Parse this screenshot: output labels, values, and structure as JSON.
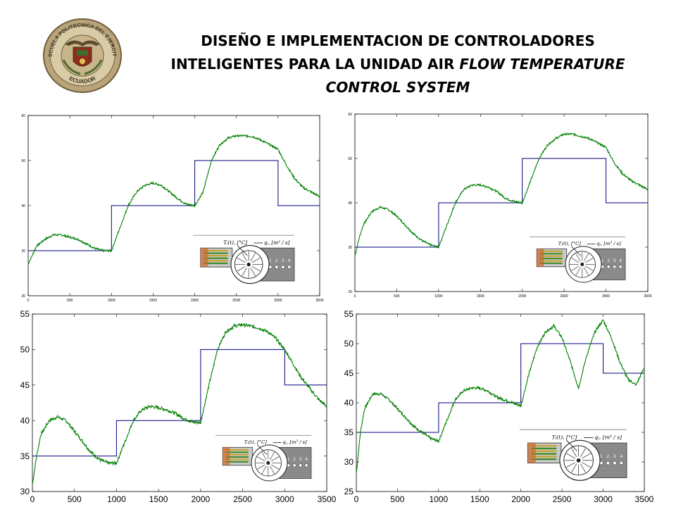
{
  "seal": {
    "top_text": "ESCUELA POLITECNICA DEL EJERCITO",
    "bottom_text": "ECUADOR"
  },
  "title": {
    "line1": "DISEÑO E IMPLEMENTACION DE CONTROLADORES",
    "line2_plain": "INTELIGENTES PARA LA UNIDAD AIR ",
    "line2_italic": "FLOW TEMPERATURE",
    "line3_italic": "CONTROL SYSTEM"
  },
  "diagram_labels": {
    "temperature": "Tᵢ(t), [°C]",
    "flow": "qᵢ, [m³ / s]",
    "ports": [
      "1",
      "2",
      "3",
      "4"
    ]
  },
  "colors": {
    "setpoint": "#00007f",
    "response": "#008000"
  },
  "chart_data": [
    {
      "type": "line",
      "title": "",
      "xlabel": "",
      "ylabel": "",
      "xlim": [
        0,
        3500
      ],
      "ylim": [
        20,
        60
      ],
      "xticks": [
        0,
        500,
        1000,
        1500,
        2000,
        2500,
        3000,
        3500
      ],
      "yticks": [
        20,
        30,
        40,
        50,
        60
      ],
      "grid": false,
      "series": [
        {
          "role": "setpoint",
          "x": [
            0,
            1000,
            1000,
            2000,
            2000,
            3000,
            3000,
            3500
          ],
          "y": [
            30,
            30,
            40,
            40,
            50,
            50,
            40,
            40
          ]
        },
        {
          "role": "response",
          "x": [
            0,
            100,
            200,
            300,
            400,
            500,
            600,
            700,
            800,
            900,
            1000,
            1100,
            1200,
            1300,
            1400,
            1500,
            1600,
            1700,
            1800,
            1900,
            2000,
            2100,
            2200,
            2300,
            2400,
            2500,
            2600,
            2700,
            2800,
            2900,
            3000,
            3100,
            3200,
            3300,
            3400,
            3500
          ],
          "y": [
            27,
            31,
            32.5,
            33.5,
            33.5,
            33,
            32.5,
            31.5,
            30.5,
            30,
            30,
            35,
            40,
            43,
            44.5,
            45,
            44.5,
            43,
            41.5,
            40.3,
            40,
            43,
            50,
            53.5,
            55,
            55.5,
            55.5,
            55.3,
            54.5,
            53.5,
            52.5,
            49,
            46,
            44,
            43,
            42
          ]
        }
      ]
    },
    {
      "type": "line",
      "title": "",
      "xlabel": "",
      "ylabel": "",
      "xlim": [
        0,
        3500
      ],
      "ylim": [
        20,
        60
      ],
      "xticks": [
        0,
        500,
        1000,
        1500,
        2000,
        2500,
        3000,
        3500
      ],
      "yticks": [
        20,
        30,
        40,
        50,
        60
      ],
      "grid": false,
      "series": [
        {
          "role": "setpoint",
          "x": [
            0,
            1000,
            1000,
            2000,
            2000,
            3000,
            3000,
            3500
          ],
          "y": [
            30,
            30,
            40,
            40,
            50,
            50,
            40,
            40
          ]
        },
        {
          "role": "response",
          "x": [
            0,
            50,
            100,
            200,
            300,
            400,
            500,
            600,
            700,
            800,
            900,
            1000,
            1100,
            1200,
            1300,
            1400,
            1500,
            1600,
            1700,
            1800,
            1900,
            2000,
            2100,
            2200,
            2300,
            2400,
            2500,
            2600,
            2700,
            2800,
            2900,
            3000,
            3100,
            3200,
            3300,
            3400,
            3500
          ],
          "y": [
            28,
            32,
            35,
            38,
            39,
            38.5,
            37,
            35,
            33,
            31.5,
            30.5,
            30,
            35,
            40,
            43,
            44,
            44,
            43.5,
            42.5,
            41,
            40.3,
            40,
            45,
            50,
            53,
            54.5,
            55.5,
            55.5,
            55,
            54.5,
            53.5,
            52.5,
            49,
            46.5,
            45,
            44,
            43
          ]
        }
      ]
    },
    {
      "type": "line",
      "title": "",
      "xlabel": "",
      "ylabel": "",
      "xlim": [
        0,
        3500
      ],
      "ylim": [
        30,
        55
      ],
      "xticks": [
        0,
        500,
        1000,
        1500,
        2000,
        2500,
        3000,
        3500
      ],
      "yticks": [
        30,
        35,
        40,
        45,
        50,
        55
      ],
      "grid": false,
      "series": [
        {
          "role": "setpoint",
          "x": [
            0,
            1000,
            1000,
            2000,
            2000,
            3000,
            3000,
            3500
          ],
          "y": [
            35,
            35,
            40,
            40,
            50,
            50,
            45,
            45
          ]
        },
        {
          "role": "response",
          "x": [
            0,
            50,
            100,
            200,
            300,
            400,
            500,
            600,
            700,
            800,
            900,
            1000,
            1100,
            1200,
            1300,
            1400,
            1500,
            1600,
            1700,
            1800,
            1900,
            2000,
            2100,
            2200,
            2300,
            2400,
            2500,
            2600,
            2700,
            2800,
            2900,
            3000,
            3100,
            3200,
            3300,
            3400,
            3500
          ],
          "y": [
            31,
            35,
            38,
            40,
            40.5,
            40,
            38.5,
            37,
            35.5,
            34.5,
            34,
            34,
            37,
            40,
            41.5,
            42,
            41.8,
            41.5,
            41,
            40.3,
            39.8,
            39.7,
            45,
            50,
            52.5,
            53.3,
            53.5,
            53.3,
            53,
            52.5,
            51.5,
            50,
            48,
            46,
            44.5,
            43,
            42
          ]
        }
      ]
    },
    {
      "type": "line",
      "title": "",
      "xlabel": "",
      "ylabel": "",
      "xlim": [
        0,
        3500
      ],
      "ylim": [
        25,
        55
      ],
      "xticks": [
        0,
        500,
        1000,
        1500,
        2000,
        2500,
        3000,
        3500
      ],
      "yticks": [
        25,
        30,
        35,
        40,
        45,
        50,
        55
      ],
      "grid": false,
      "series": [
        {
          "role": "setpoint",
          "x": [
            0,
            1000,
            1000,
            2000,
            2000,
            3000,
            3000,
            3500
          ],
          "y": [
            35,
            35,
            40,
            40,
            50,
            50,
            45,
            45
          ]
        },
        {
          "role": "response",
          "x": [
            0,
            50,
            100,
            200,
            300,
            400,
            500,
            600,
            700,
            800,
            900,
            1000,
            1100,
            1200,
            1300,
            1400,
            1500,
            1600,
            1700,
            1800,
            1900,
            2000,
            2100,
            2200,
            2300,
            2400,
            2500,
            2600,
            2700,
            2800,
            2900,
            3000,
            3100,
            3200,
            3300,
            3400,
            3500
          ],
          "y": [
            28,
            35,
            39,
            41.5,
            41.5,
            40.5,
            39,
            37.5,
            36,
            35,
            34,
            33.5,
            37,
            40.5,
            42,
            42.5,
            42.5,
            42,
            41,
            40.5,
            40,
            39.5,
            45,
            49.5,
            52,
            53,
            51,
            47,
            42.5,
            48,
            52,
            54,
            51,
            47,
            44,
            43,
            46
          ]
        }
      ]
    }
  ]
}
